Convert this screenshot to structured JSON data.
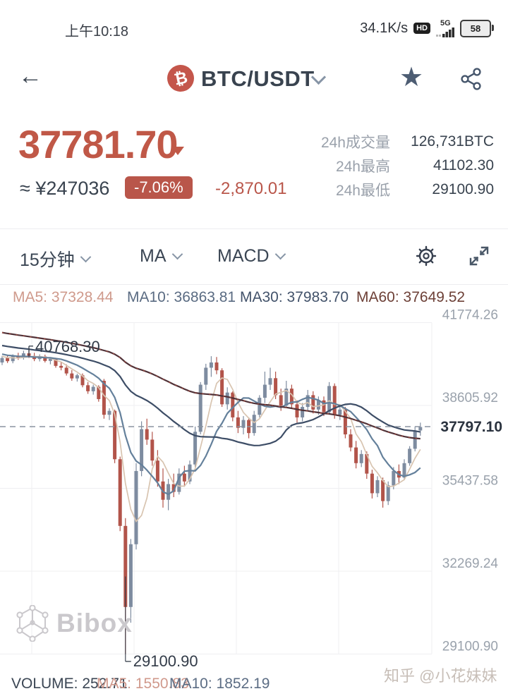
{
  "status_bar": {
    "time": "上午10:18",
    "net_speed": "34.1K/s",
    "hd": "HD",
    "network": "5G",
    "battery": "58"
  },
  "header": {
    "pair": "BTC/USDT",
    "coin_symbol": "₿"
  },
  "price": {
    "last": "37781.70",
    "approx": "≈ ¥247036",
    "change_pct": "-7.06%",
    "change_abs": "-2,870.01"
  },
  "stats": {
    "rows": [
      {
        "label": "24h成交量",
        "value": "126,731BTC"
      },
      {
        "label": "24h最高",
        "value": "41102.30"
      },
      {
        "label": "24h最低",
        "value": "29100.90"
      }
    ]
  },
  "toolbar": {
    "interval": "15分钟",
    "ma": "MA",
    "macd": "MACD"
  },
  "ma_legend": [
    {
      "text": "MA5: 37328.44",
      "color": "#cf9a8c"
    },
    {
      "text": "MA10: 36863.81",
      "color": "#5a6b82"
    },
    {
      "text": "MA30: 37983.70",
      "color": "#42526a"
    },
    {
      "text": "MA60: 37649.52",
      "color": "#6d4037"
    }
  ],
  "volume_legend": [
    {
      "text": "VOLUME: 252.71",
      "color": "#3b4654"
    },
    {
      "text": "MA5: 1550.83",
      "color": "#d0998c"
    },
    {
      "text": "MA10: 1852.19",
      "color": "#5c6d84"
    }
  ],
  "watermarks": {
    "exchange": "Bibox",
    "source": "知乎 @小花妹妹"
  },
  "chart_data": {
    "type": "candlestick",
    "pair": "BTC/USDT",
    "interval": "15分钟",
    "axis_prices": [
      41774.26,
      38605.92,
      35437.58,
      32269.24,
      29100.9
    ],
    "current_price_line": 37797.1,
    "current_price_label": "37797.10",
    "high_annotation": {
      "label": "40768.30",
      "price": 40768.3,
      "candle_index": 5
    },
    "low_annotation": {
      "label": "29100.90",
      "price": 29100.9,
      "candle_index": 23
    },
    "colors": {
      "up": "#7e8ca0",
      "down": "#b2544a",
      "ma5": "#d8c4b0",
      "ma10": "#64809b",
      "ma30": "#3d4d66",
      "ma60": "#503238",
      "ma60_dots": "#a34a3e",
      "grid": "#efeff2",
      "axis_text": "#9aa2ac",
      "dashed": "#8a93a0",
      "annotation": "#323b48",
      "price_label": "#2a323e"
    },
    "candles": [
      [
        40250,
        40500,
        40150,
        40420
      ],
      [
        40420,
        40520,
        40230,
        40300
      ],
      [
        40300,
        40560,
        40220,
        40480
      ],
      [
        40480,
        40620,
        40350,
        40430
      ],
      [
        40430,
        40700,
        40360,
        40600
      ],
      [
        40600,
        40768.3,
        40420,
        40500
      ],
      [
        40500,
        40620,
        40300,
        40380
      ],
      [
        40380,
        40560,
        40290,
        40480
      ],
      [
        40480,
        40550,
        40250,
        40310
      ],
      [
        40310,
        40450,
        40180,
        40390
      ],
      [
        40390,
        40430,
        40050,
        40120
      ],
      [
        40120,
        40260,
        39950,
        40050
      ],
      [
        40050,
        40180,
        39750,
        39830
      ],
      [
        39830,
        39960,
        39550,
        39640
      ],
      [
        39640,
        39820,
        39520,
        39760
      ],
      [
        39760,
        39830,
        39300,
        39380
      ],
      [
        39380,
        39500,
        39050,
        39150
      ],
      [
        39150,
        39400,
        39020,
        39320
      ],
      [
        39320,
        39380,
        38750,
        38850
      ],
      [
        39550,
        39620,
        38100,
        38250
      ],
      [
        38250,
        38500,
        38050,
        38400
      ],
      [
        38400,
        38450,
        36400,
        36550
      ],
      [
        36550,
        36650,
        33800,
        34000
      ],
      [
        34000,
        34300,
        29100.9,
        30900
      ],
      [
        30900,
        33500,
        30300,
        33300
      ],
      [
        33300,
        36400,
        33100,
        36100
      ],
      [
        36100,
        38000,
        35900,
        37700
      ],
      [
        37700,
        38100,
        37100,
        37300
      ],
      [
        37300,
        37600,
        36300,
        36500
      ],
      [
        36500,
        36900,
        35500,
        35700
      ],
      [
        35700,
        36200,
        34700,
        35000
      ],
      [
        35000,
        35800,
        34600,
        35600
      ],
      [
        35600,
        36000,
        35100,
        35300
      ],
      [
        35300,
        36200,
        35200,
        36000
      ],
      [
        36000,
        36300,
        35500,
        35700
      ],
      [
        35700,
        36500,
        35600,
        36350
      ],
      [
        36350,
        37800,
        36250,
        37600
      ],
      [
        37600,
        39500,
        37500,
        39400
      ],
      [
        39400,
        40200,
        39200,
        40050
      ],
      [
        40050,
        40490,
        39700,
        40250
      ],
      [
        40250,
        40460,
        39800,
        39950
      ],
      [
        39950,
        40030,
        38550,
        38650
      ],
      [
        38650,
        39300,
        38450,
        39100
      ],
      [
        39100,
        39150,
        38000,
        38150
      ],
      [
        38150,
        38400,
        37550,
        37750
      ],
      [
        37750,
        38200,
        37500,
        38050
      ],
      [
        38050,
        38150,
        37350,
        37550
      ],
      [
        37550,
        38400,
        37450,
        38250
      ],
      [
        38250,
        39000,
        38150,
        38900
      ],
      [
        38900,
        39900,
        38700,
        39400
      ],
      [
        39400,
        40050,
        39200,
        39650
      ],
      [
        39650,
        39900,
        38850,
        39000
      ],
      [
        39000,
        39250,
        38400,
        38600
      ],
      [
        38600,
        39550,
        38500,
        39250
      ],
      [
        39250,
        39400,
        38500,
        38650
      ],
      [
        38650,
        38800,
        37950,
        38150
      ],
      [
        38150,
        38700,
        38000,
        38550
      ],
      [
        38550,
        39200,
        38400,
        39000
      ],
      [
        39000,
        39150,
        38300,
        38450
      ],
      [
        38450,
        38950,
        38250,
        38800
      ],
      [
        38800,
        38950,
        38200,
        38350
      ],
      [
        38350,
        39500,
        38250,
        39350
      ],
      [
        39350,
        39450,
        38100,
        38250
      ],
      [
        38250,
        38600,
        38050,
        38450
      ],
      [
        38450,
        38550,
        37350,
        37500
      ],
      [
        37500,
        37700,
        36850,
        37000
      ],
      [
        37000,
        37250,
        36200,
        36400
      ],
      [
        36400,
        36900,
        36250,
        36750
      ],
      [
        36750,
        36850,
        35800,
        36000
      ],
      [
        36000,
        36150,
        35050,
        35250
      ],
      [
        35250,
        35900,
        35100,
        35750
      ],
      [
        35750,
        35850,
        34700,
        34950
      ],
      [
        34950,
        35700,
        34800,
        35550
      ],
      [
        35550,
        36250,
        35400,
        36100
      ],
      [
        36100,
        36350,
        35600,
        35850
      ],
      [
        35850,
        36550,
        35750,
        36400
      ],
      [
        36400,
        37050,
        36300,
        36950
      ],
      [
        36950,
        37800,
        36850,
        37650
      ],
      [
        37650,
        37950,
        37450,
        37781.7
      ]
    ]
  }
}
